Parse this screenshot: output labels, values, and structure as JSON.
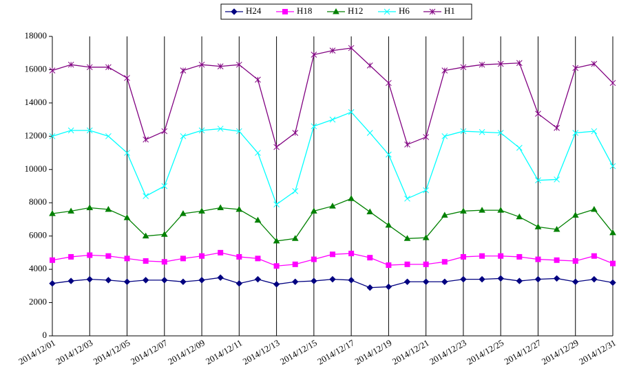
{
  "chart_data": {
    "type": "line",
    "categories": [
      "2014/12/01",
      null,
      "2014/12/03",
      null,
      "2014/12/05",
      null,
      "2014/12/07",
      null,
      "2014/12/09",
      null,
      "2014/12/11",
      null,
      "2014/12/13",
      null,
      "2014/12/15",
      null,
      "2014/12/17",
      null,
      "2014/12/19",
      null,
      "2014/12/21",
      null,
      "2014/12/23",
      null,
      "2014/12/25",
      null,
      "2014/12/27",
      null,
      "2014/12/29",
      null,
      "2014/12/31"
    ],
    "series": [
      {
        "name": "H24",
        "color": "#000080",
        "marker": "diamond",
        "values": [
          3150,
          3300,
          3400,
          3350,
          3250,
          3350,
          3350,
          3250,
          3350,
          3500,
          3150,
          3400,
          3100,
          3250,
          3300,
          3400,
          3350,
          2900,
          2950,
          3250,
          3250,
          3250,
          3400,
          3400,
          3450,
          3300,
          3400,
          3450,
          3250,
          3400,
          3200
        ]
      },
      {
        "name": "H18",
        "color": "#ff00ff",
        "marker": "square",
        "values": [
          4550,
          4750,
          4850,
          4800,
          4650,
          4500,
          4450,
          4650,
          4800,
          5000,
          4750,
          4650,
          4200,
          4300,
          4600,
          4900,
          4950,
          4700,
          4250,
          4300,
          4300,
          4450,
          4750,
          4800,
          4800,
          4750,
          4600,
          4550,
          4500,
          4800,
          4350
        ]
      },
      {
        "name": "H12",
        "color": "#008000",
        "marker": "triangle",
        "values": [
          7350,
          7500,
          7700,
          7600,
          7100,
          6000,
          6100,
          7350,
          7500,
          7700,
          7600,
          6950,
          5700,
          5850,
          7500,
          7800,
          8250,
          7450,
          6650,
          5850,
          5900,
          7250,
          7500,
          7550,
          7550,
          7150,
          6550,
          6400,
          7250,
          7600,
          6200
        ]
      },
      {
        "name": "H6",
        "color": "#00ffff",
        "marker": "x",
        "values": [
          12000,
          12350,
          12350,
          12000,
          11000,
          8400,
          9000,
          12000,
          12350,
          12450,
          12300,
          11000,
          7900,
          8700,
          12600,
          13000,
          13450,
          12200,
          10900,
          8250,
          8750,
          12000,
          12300,
          12250,
          12200,
          11300,
          9350,
          9400,
          12200,
          12300,
          10200
        ]
      },
      {
        "name": "H1",
        "color": "#800080",
        "marker": "star",
        "values": [
          15950,
          16300,
          16150,
          16150,
          15500,
          11800,
          12300,
          15950,
          16300,
          16200,
          16300,
          15400,
          11350,
          12200,
          16900,
          17150,
          17300,
          16250,
          15200,
          11500,
          11950,
          15950,
          16150,
          16300,
          16350,
          16400,
          13350,
          12500,
          16100,
          16350,
          15200
        ]
      }
    ],
    "ylim": [
      0,
      18000
    ],
    "yticks": [
      0,
      2000,
      4000,
      6000,
      8000,
      10000,
      12000,
      14000,
      16000,
      18000
    ],
    "grid": "x",
    "legend": "top"
  }
}
